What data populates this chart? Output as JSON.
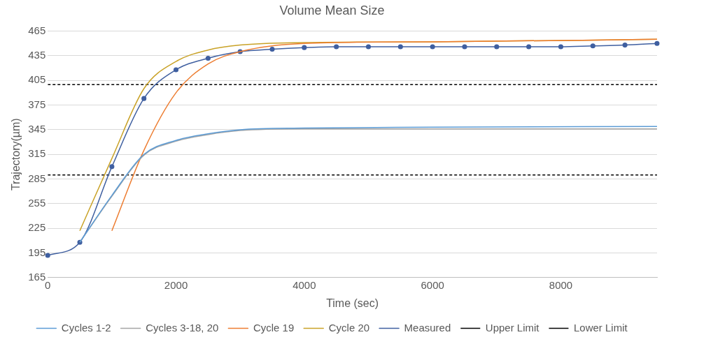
{
  "chart_data": {
    "type": "line",
    "title": "Volume Mean Size",
    "xlabel": "Time (sec)",
    "ylabel": "Trajectory(µm)",
    "xlim": [
      0,
      9500
    ],
    "xticks": [
      0,
      2000,
      4000,
      6000,
      8000
    ],
    "ylim": [
      165,
      465
    ],
    "yticks": [
      165,
      195,
      225,
      255,
      285,
      315,
      345,
      375,
      405,
      435,
      465
    ],
    "grid": "y",
    "legend": "bottom",
    "line_style": "solid",
    "series": [
      {
        "name": "Cycles 1-2",
        "color": "#5b9bd5",
        "x": [
          500,
          1000,
          1500,
          2000,
          2500,
          3000,
          4000,
          6000,
          9500
        ],
        "values": [
          208,
          265,
          315,
          332,
          340,
          345,
          347,
          348,
          349
        ]
      },
      {
        "name": "Cycles 3-18, 20",
        "color": "#a5a5a5",
        "x": [
          500,
          1000,
          1500,
          2000,
          2500,
          3000,
          4000,
          6000,
          9500
        ],
        "values": [
          208,
          264,
          314,
          331,
          339,
          344,
          346,
          346,
          346
        ]
      },
      {
        "name": "Cycle 19",
        "color": "#ed7d31",
        "x": [
          1000,
          1500,
          2000,
          2500,
          3000,
          4000,
          6000,
          9500
        ],
        "values": [
          222,
          320,
          390,
          425,
          440,
          450,
          452,
          455
        ]
      },
      {
        "name": "Cycle 20",
        "color": "#c9a227",
        "x": [
          500,
          1000,
          1500,
          2000,
          2500,
          3000,
          4000,
          6000,
          9500
        ],
        "values": [
          222,
          310,
          395,
          428,
          442,
          448,
          451,
          452,
          455
        ]
      },
      {
        "name": "Measured",
        "color": "#3f5fa0",
        "marker": "circle",
        "x": [
          0,
          500,
          1000,
          1500,
          2000,
          2500,
          3000,
          3500,
          4000,
          4500,
          5000,
          5500,
          6000,
          6500,
          7000,
          7500,
          8000,
          8500,
          9000,
          9500
        ],
        "values": [
          192,
          208,
          300,
          383,
          418,
          432,
          440,
          443,
          445,
          446,
          446,
          446,
          446,
          446,
          446,
          446,
          446,
          447,
          448,
          450
        ]
      }
    ],
    "ref_lines": [
      {
        "axis": "y",
        "value": 400,
        "label": "Upper Limit",
        "color": "#000000",
        "line_style": "dashed"
      },
      {
        "axis": "y",
        "value": 290,
        "label": "Lower Limit",
        "color": "#000000",
        "line_style": "dashed"
      }
    ]
  }
}
